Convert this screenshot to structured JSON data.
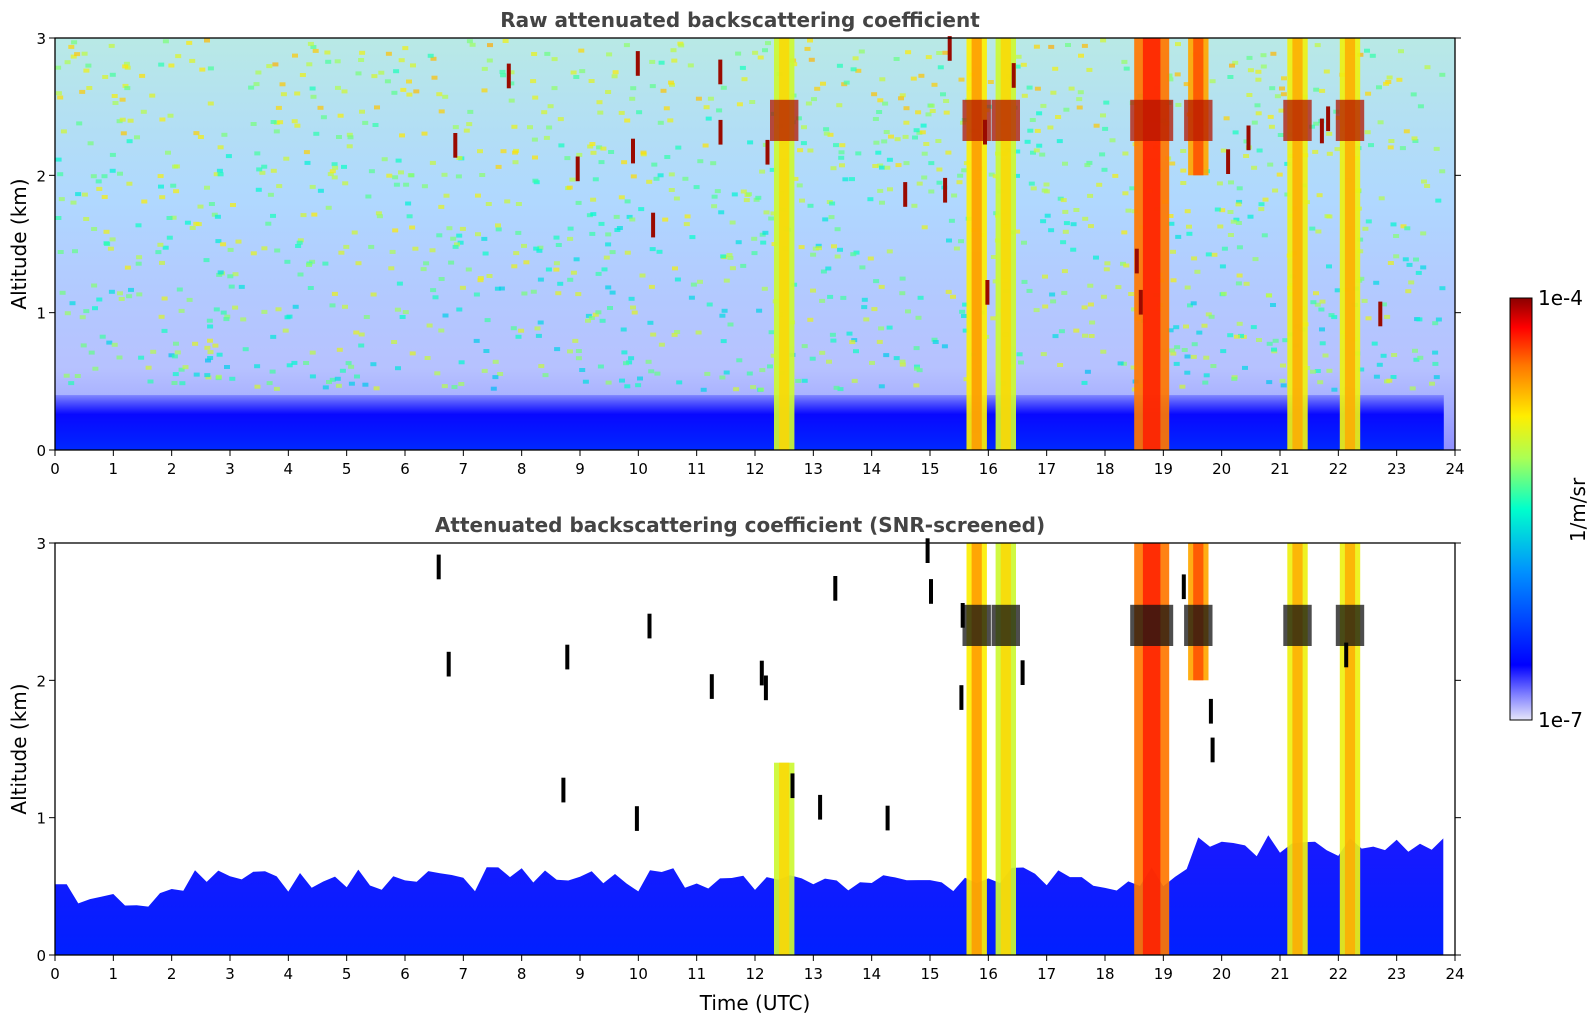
{
  "chart_data": [
    {
      "type": "heatmap",
      "title": "Raw attenuated backscattering coefficient",
      "xlabel": "",
      "ylabel": "Altitude (km)",
      "xlim": [
        0,
        24
      ],
      "ylim": [
        0,
        3
      ],
      "x_ticks": [
        "0",
        "1",
        "2",
        "3",
        "4",
        "5",
        "6",
        "7",
        "8",
        "9",
        "10",
        "11",
        "12",
        "13",
        "14",
        "15",
        "16",
        "17",
        "18",
        "19",
        "20",
        "21",
        "22",
        "23",
        "24"
      ],
      "y_ticks": [
        "0",
        "1",
        "2",
        "3"
      ],
      "boundary_layer_top_km": 0.4,
      "clouds": [
        {
          "time": 12.5,
          "base_km": 0.0,
          "top_km": 3.0,
          "level": 0.55
        },
        {
          "time": 15.8,
          "base_km": 0.0,
          "top_km": 3.0,
          "level": 0.62
        },
        {
          "time": 16.3,
          "base_km": 0.0,
          "top_km": 3.0,
          "level": 0.55
        },
        {
          "time": 18.8,
          "base_km": 0.0,
          "top_km": 3.0,
          "level": 0.75
        },
        {
          "time": 19.6,
          "base_km": 2.0,
          "top_km": 3.0,
          "level": 0.7
        },
        {
          "time": 21.3,
          "base_km": 0.0,
          "top_km": 3.0,
          "level": 0.6
        },
        {
          "time": 22.2,
          "base_km": 0.0,
          "top_km": 3.0,
          "level": 0.6
        }
      ]
    },
    {
      "type": "heatmap",
      "title": "Attenuated backscattering coefficient (SNR-screened)",
      "xlabel": "Time (UTC)",
      "ylabel": "Altitude (km)",
      "xlim": [
        0,
        24
      ],
      "ylim": [
        0,
        3
      ],
      "x_ticks": [
        "0",
        "1",
        "2",
        "3",
        "4",
        "5",
        "6",
        "7",
        "8",
        "9",
        "10",
        "11",
        "12",
        "13",
        "14",
        "15",
        "16",
        "17",
        "18",
        "19",
        "20",
        "21",
        "22",
        "23",
        "24"
      ],
      "y_ticks": [
        "0",
        "1",
        "2",
        "3"
      ],
      "boundary_layer_top_km": 0.55,
      "clouds": [
        {
          "time": 12.5,
          "base_km": 0.0,
          "top_km": 1.4,
          "level": 0.55
        },
        {
          "time": 15.8,
          "base_km": 0.0,
          "top_km": 3.0,
          "level": 0.62
        },
        {
          "time": 16.3,
          "base_km": 0.0,
          "top_km": 3.0,
          "level": 0.55
        },
        {
          "time": 18.8,
          "base_km": 0.0,
          "top_km": 3.0,
          "level": 0.75
        },
        {
          "time": 19.6,
          "base_km": 2.0,
          "top_km": 3.0,
          "level": 0.7
        },
        {
          "time": 21.3,
          "base_km": 0.0,
          "top_km": 3.0,
          "level": 0.6
        },
        {
          "time": 22.2,
          "base_km": 0.0,
          "top_km": 3.0,
          "level": 0.6
        }
      ]
    }
  ],
  "colorbar": {
    "label": "1/m/sr",
    "max_label": "1e-4",
    "min_label": "1e-7",
    "colormap": [
      "#e6e6fa",
      "#0000ff",
      "#00aaff",
      "#00ffcc",
      "#aaff55",
      "#ffee00",
      "#ff7700",
      "#ff0000",
      "#8b0000"
    ]
  }
}
